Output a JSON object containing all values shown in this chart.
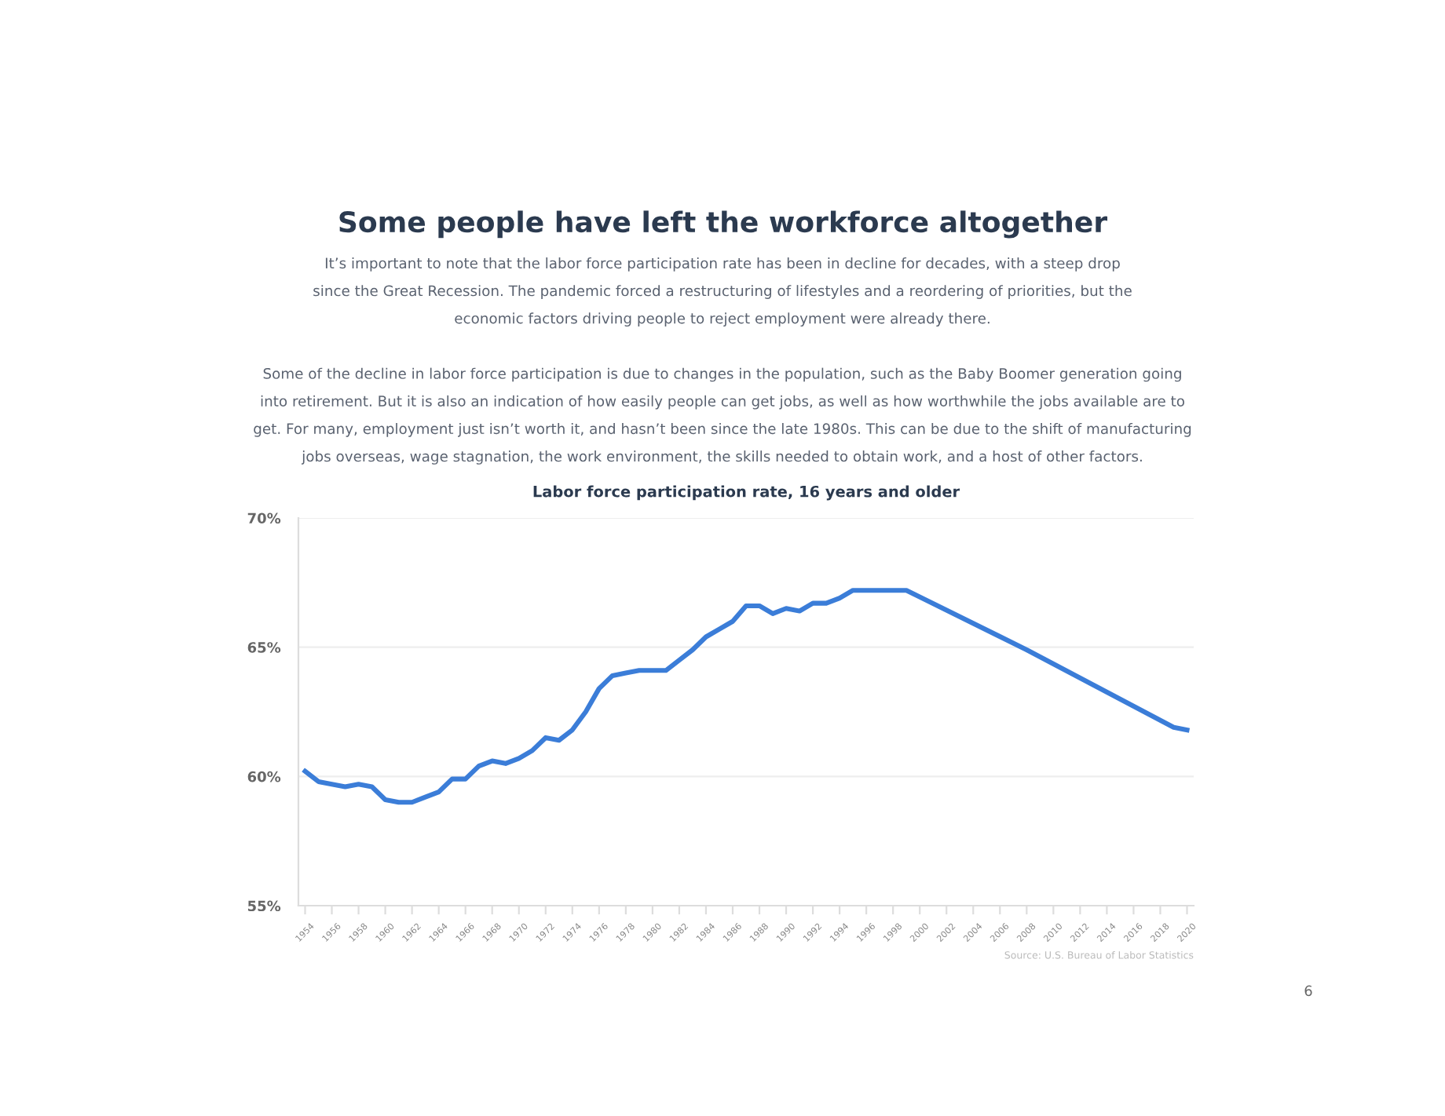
{
  "chart_data": {
    "type": "line",
    "title": "Some people have left the workforce altogether",
    "subtitle": "It’s important to note that the labor force participation rate has been in decline for decades, with a steep drop\nsince the Great Recession. The pandemic forced a restructuring of lifestyles and a reordering of priorities, but the\neconomic factors driving people to reject employment were already there.\n\nSome of the decline in labor force participation is due to changes in the population, such as the Baby Boomer generation going\ninto retirement. But it is also an indication of how easily people can get jobs, as well as how worthwhile the jobs available are to\nget. For many, employment just isn’t worth it, and hasn’t been since the late 1980s. This can be due to the shift of manufacturing\njobs overseas, wage stagnation, the work environment, the skills needed to obtain work, and a host of other factors.",
    "annotations": [
      "Labor force participation rate, 16 years and older",
      "Source: U.S. Bureau of Labor Statistics",
      "6"
    ],
    "x": [
      1954,
      1955,
      1956,
      1957,
      1958,
      1959,
      1960,
      1961,
      1962,
      1963,
      1964,
      1965,
      1966,
      1967,
      1968,
      1969,
      1970,
      1971,
      1972,
      1973,
      1974,
      1975,
      1976,
      1977,
      1978,
      1979,
      1980,
      1981,
      1982,
      1983,
      1984,
      1985,
      1986,
      1987,
      1988,
      1989,
      1990,
      1991,
      1992,
      1993,
      1994,
      1995,
      1996,
      1997,
      1998,
      1999,
      2008,
      2019,
      2020
    ],
    "series": [
      {
        "color": "#3b7dd8",
        "values": [
          60.2,
          59.8,
          59.7,
          59.6,
          59.7,
          59.6,
          59.1,
          59.0,
          59.0,
          59.2,
          59.4,
          59.9,
          59.9,
          60.4,
          60.6,
          60.5,
          60.7,
          61.0,
          61.5,
          61.4,
          61.8,
          62.5,
          63.4,
          63.9,
          64.0,
          64.1,
          64.1,
          64.1,
          64.5,
          64.9,
          65.4,
          65.7,
          66.0,
          66.6,
          66.6,
          66.3,
          66.5,
          66.4,
          66.7,
          66.7,
          66.9,
          67.2,
          67.2,
          67.2,
          67.2,
          67.2,
          64.9,
          61.9,
          61.8
        ]
      }
    ],
    "xlim": [
      1953.5,
      2020.5
    ],
    "xticks": [
      1954,
      1956,
      1958,
      1960,
      1962,
      1964,
      1966,
      1968,
      1970,
      1972,
      1974,
      1976,
      1978,
      1980,
      1982,
      1984,
      1986,
      1988,
      1990,
      1992,
      1994,
      1996,
      1998,
      2000,
      2002,
      2004,
      2006,
      2008,
      2010,
      2012,
      2014,
      2016,
      2018,
      2020
    ],
    "ylim": [
      55,
      70
    ],
    "yticks": [
      {
        "value": 55,
        "label": "55%"
      },
      {
        "value": 60,
        "label": "60%"
      },
      {
        "value": 65,
        "label": "65%"
      },
      {
        "value": 70,
        "label": "70%"
      }
    ],
    "grid": "y",
    "marker": "none",
    "line_style": "solid",
    "legend": false
  }
}
